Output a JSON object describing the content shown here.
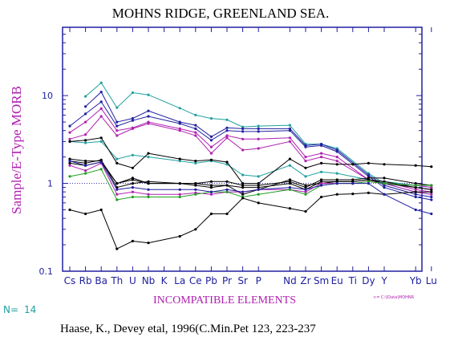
{
  "chart_data": {
    "type": "line",
    "title": "MOHNS RIDGE, GREENLAND SEA.",
    "ylabel": "Sample/E-Type MORB",
    "xlabel": "INCOMPATIBLE ELEMENTS",
    "y_scale": "log",
    "ylim": [
      0.1,
      60
    ],
    "y_ticks": [
      {
        "value": 0.1,
        "label": "0.1"
      },
      {
        "value": 1,
        "label": "1"
      },
      {
        "value": 10,
        "label": "10"
      }
    ],
    "reference_line": 1,
    "categories": [
      "Cs",
      "Rb",
      "Ba",
      "Th",
      "U",
      "Nb",
      "K",
      "La",
      "Ce",
      "Pb",
      "Pr",
      "Sr",
      "P",
      "Nd",
      "Zr",
      "Sm",
      "Eu",
      "Ti",
      "Dy",
      "Y",
      "Yb",
      "Lu"
    ],
    "x_tick_labels": [
      "Cs",
      "Rb",
      "Ba",
      "Th",
      "U",
      "Nb",
      "K",
      "La",
      "Ce",
      "Pb",
      "Pr",
      "Sr",
      "P",
      "Nd",
      "Zr",
      "Sm",
      "Eu",
      "Ti",
      "Dy",
      "Y",
      "Yb",
      "Lu"
    ],
    "x_positions": [
      0,
      1,
      2,
      3,
      4,
      5,
      6,
      7,
      8,
      9,
      10,
      11,
      12,
      14,
      15,
      16,
      17,
      18,
      19,
      20,
      22,
      23
    ],
    "series": [
      {
        "color": "#20a0a0",
        "values": [
          null,
          9.8,
          14,
          7.3,
          10.8,
          10.2,
          null,
          7.2,
          6,
          5.5,
          5.3,
          4.4,
          4.5,
          4.6,
          2.8,
          2.8,
          2.5,
          null,
          1.3,
          1.0,
          0.8,
          0.75
        ]
      },
      {
        "color": "#2020a0",
        "values": [
          null,
          7.5,
          11,
          5,
          5.5,
          6.7,
          null,
          5,
          4.6,
          3.4,
          4.3,
          4.2,
          4.2,
          4.2,
          2.7,
          2.8,
          2.4,
          null,
          1.25,
          0.95,
          0.75,
          0.7
        ]
      },
      {
        "color": "#2020a0",
        "values": [
          4.5,
          6.2,
          8.5,
          4.5,
          5.2,
          5.8,
          null,
          4.8,
          4.2,
          3.1,
          4.0,
          3.9,
          3.9,
          4.0,
          2.6,
          2.7,
          2.3,
          null,
          1.2,
          0.9,
          0.7,
          0.65
        ]
      },
      {
        "color": "#b020b0",
        "values": [
          3.8,
          5,
          7.1,
          4,
          4.3,
          5,
          null,
          4.2,
          3.8,
          2.6,
          3.5,
          3.2,
          3.2,
          3.3,
          2.0,
          2.2,
          2.0,
          null,
          1.1,
          1.0,
          0.8,
          0.75
        ]
      },
      {
        "color": "#b020b0",
        "values": [
          3.2,
          3.6,
          5.8,
          3.5,
          4.2,
          4.8,
          null,
          4.0,
          3.5,
          2.2,
          3.3,
          2.4,
          2.5,
          3.0,
          1.8,
          2.0,
          1.8,
          null,
          1.1,
          1.05,
          0.85,
          0.8
        ]
      },
      {
        "color": "#20a0a0",
        "values": [
          3.0,
          2.9,
          3.0,
          1.9,
          2.1,
          2.0,
          null,
          1.8,
          1.7,
          1.8,
          1.65,
          1.25,
          1.2,
          1.6,
          1.2,
          1.35,
          1.3,
          null,
          1.1,
          1.05,
          0.95,
          0.9
        ]
      },
      {
        "color": "#000000",
        "values": [
          3.0,
          3.1,
          3.3,
          1.7,
          1.5,
          2.2,
          null,
          1.9,
          1.8,
          1.85,
          1.75,
          1.0,
          1.0,
          1.9,
          1.5,
          1.7,
          1.65,
          1.65,
          1.7,
          1.65,
          1.6,
          1.55
        ]
      },
      {
        "color": "#000000",
        "values": [
          1.9,
          1.8,
          1.8,
          1.0,
          1.15,
          1.0,
          null,
          1.0,
          1.0,
          0.95,
          0.95,
          0.75,
          0.85,
          1.1,
          0.95,
          1.0,
          1.05,
          1.05,
          1.1,
          1.05,
          0.9,
          0.85
        ]
      },
      {
        "color": "#000000",
        "values": [
          1.8,
          1.7,
          1.85,
          0.9,
          1.0,
          1.05,
          null,
          1.0,
          1.0,
          1.05,
          1.05,
          0.95,
          0.95,
          1.05,
          0.9,
          1.1,
          1.1,
          1.1,
          1.15,
          1.15,
          1.0,
          0.95
        ]
      },
      {
        "color": "#000000",
        "values": [
          1.7,
          1.6,
          1.75,
          1.0,
          1.1,
          1.0,
          null,
          1.0,
          0.95,
          0.9,
          0.95,
          0.9,
          0.9,
          1.0,
          0.85,
          1.05,
          1.05,
          1.05,
          1.1,
          1.0,
          0.9,
          0.85
        ]
      },
      {
        "color": "#b020b0",
        "values": [
          1.6,
          1.4,
          1.7,
          0.75,
          0.8,
          0.75,
          null,
          0.75,
          0.78,
          0.75,
          0.8,
          0.8,
          0.85,
          0.85,
          0.8,
          1.0,
          1.0,
          1.0,
          1.05,
          1.0,
          0.95,
          0.9
        ]
      },
      {
        "color": "#20a020",
        "values": [
          1.2,
          1.3,
          1.45,
          0.65,
          0.7,
          0.7,
          null,
          0.7,
          0.75,
          0.8,
          0.8,
          0.7,
          0.75,
          0.85,
          0.75,
          0.95,
          1.0,
          1.0,
          1.05,
          1.0,
          0.95,
          0.95
        ]
      },
      {
        "color": "#000000",
        "values": [
          0.5,
          0.45,
          0.5,
          0.18,
          0.22,
          0.21,
          null,
          0.25,
          0.3,
          0.45,
          0.45,
          0.68,
          0.6,
          0.52,
          0.48,
          0.7,
          0.75,
          0.76,
          0.78,
          0.75,
          0.8,
          0.8
        ]
      },
      {
        "color": "#2020a0",
        "values": [
          1.8,
          1.6,
          1.75,
          0.85,
          0.9,
          0.85,
          null,
          0.85,
          0.85,
          0.8,
          0.85,
          0.8,
          0.85,
          0.9,
          0.85,
          0.95,
          1.0,
          1.0,
          1.0,
          0.75,
          0.5,
          0.45
        ]
      }
    ]
  },
  "n_label": "N=",
  "n_value": "14",
  "note": "<= C:\\IData\\MOHNR",
  "citation": "Haase, K., Devey etal, 1996(C.Min.Pet 123, 223-237"
}
